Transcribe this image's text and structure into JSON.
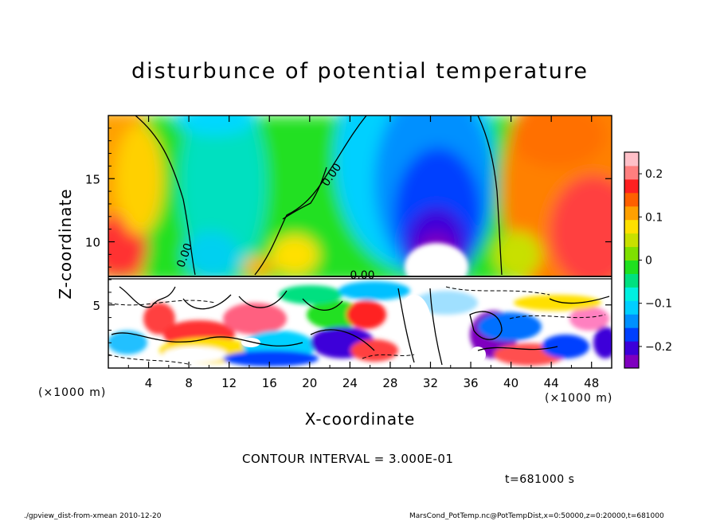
{
  "chart_data": {
    "type": "heatmap",
    "title": "disturbunce of potential temperature",
    "xlabel": "X-coordinate",
    "ylabel": "Z-coordinate",
    "x_unit": "(×1000 m)",
    "y_unit": "(×1000 m)",
    "xlim": [
      0,
      50
    ],
    "ylim": [
      0,
      20
    ],
    "x_ticks": [
      4,
      8,
      12,
      16,
      20,
      24,
      28,
      32,
      36,
      40,
      44,
      48
    ],
    "y_ticks": [
      5,
      10,
      15
    ],
    "colorbar": {
      "range": [
        -0.25,
        0.25
      ],
      "ticks": [
        0.2,
        0.1,
        0,
        -0.1,
        -0.2
      ],
      "tick_labels": [
        "0.2",
        "0.1",
        "0",
        "−0.1",
        "−0.2"
      ],
      "colors": [
        "#7f00bf",
        "#3c00d9",
        "#0040ff",
        "#0090ff",
        "#00cfff",
        "#00f0e0",
        "#00e080",
        "#20e020",
        "#7fe000",
        "#c8e000",
        "#ffe000",
        "#ffa000",
        "#ff6000",
        "#ff2020",
        "#ff7f7f",
        "#ffc0c8"
      ]
    },
    "contour_labels": [
      "0.00",
      "0.00",
      "0.00"
    ],
    "contour_interval_text": "CONTOUR INTERVAL = 3.000E-01",
    "time_text": "t=681000 s"
  },
  "footer": {
    "left": "./gpview_dist-from-xmean  2010-12-20",
    "right": "MarsCond_PotTemp.nc@PotTempDist,x=0:50000,z=0:20000,t=681000"
  }
}
